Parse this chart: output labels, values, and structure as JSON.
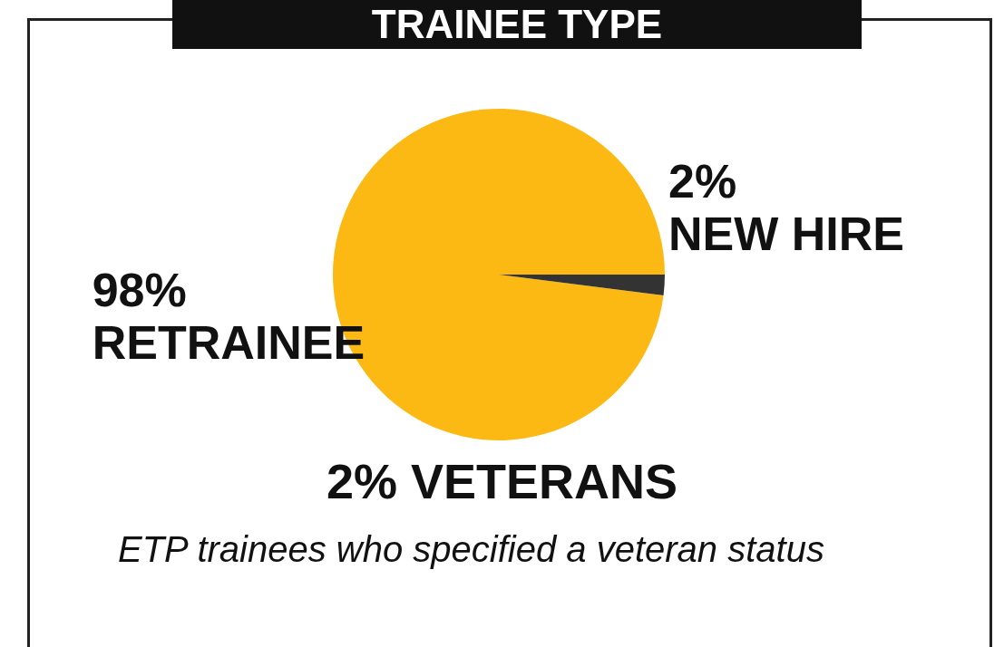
{
  "chart_data": {
    "type": "pie",
    "title": "TRAINEE TYPE",
    "categories": [
      "RETRAINEE",
      "NEW HIRE"
    ],
    "values": [
      98,
      2
    ],
    "value_labels": [
      "98%",
      "2%"
    ],
    "colors": [
      "#fdb913",
      "#333333"
    ],
    "annotations": [
      "2% VETERANS",
      "ETP trainees who specified a veteran status"
    ]
  }
}
